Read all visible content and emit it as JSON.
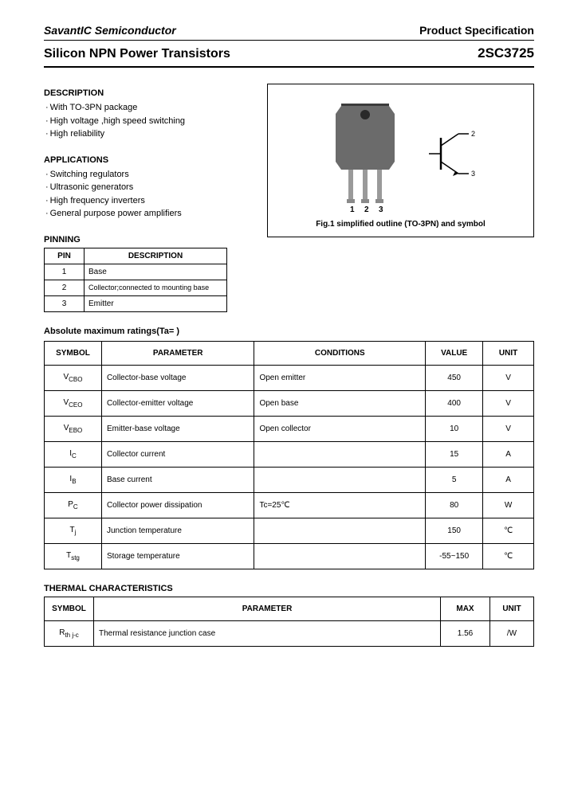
{
  "header": {
    "company": "SavantIC Semiconductor",
    "spec_label": "Product Specification",
    "product_title": "Silicon NPN Power Transistors",
    "part_number": "2SC3725"
  },
  "description": {
    "heading": "DESCRIPTION",
    "items": [
      "With TO-3PN package",
      "High voltage ,high speed switching",
      "High reliability"
    ]
  },
  "applications": {
    "heading": "APPLICATIONS",
    "items": [
      "Switching regulators",
      "Ultrasonic generators",
      "High frequency inverters",
      "General purpose power amplifiers"
    ]
  },
  "pinning": {
    "heading": "PINNING",
    "col_pin": "PIN",
    "col_desc": "DESCRIPTION",
    "rows": [
      {
        "pin": "1",
        "desc": "Base"
      },
      {
        "pin": "2",
        "desc": "Collector;connected to mounting base"
      },
      {
        "pin": "3",
        "desc": "Emitter"
      }
    ]
  },
  "figure": {
    "caption": "Fig.1 simplified outline (TO-3PN) and symbol",
    "pin_labels": [
      "1",
      "2",
      "3"
    ],
    "sym_labels": [
      "2",
      "3"
    ],
    "pkg_body": "#6b6b6b",
    "pkg_dark": "#3c3c3c",
    "lead_color": "#9a9a9a"
  },
  "abs_ratings": {
    "heading": "Absolute maximum ratings(Ta=  )",
    "columns": {
      "symbol": "SYMBOL",
      "parameter": "PARAMETER",
      "conditions": "CONDITIONS",
      "value": "VALUE",
      "unit": "UNIT"
    },
    "rows": [
      {
        "sym_b": "V",
        "sym_s": "CBO",
        "param": "Collector-base voltage",
        "cond": "Open emitter",
        "val": "450",
        "unit": "V"
      },
      {
        "sym_b": "V",
        "sym_s": "CEO",
        "param": "Collector-emitter voltage",
        "cond": "Open base",
        "val": "400",
        "unit": "V"
      },
      {
        "sym_b": "V",
        "sym_s": "EBO",
        "param": "Emitter-base voltage",
        "cond": "Open collector",
        "val": "10",
        "unit": "V"
      },
      {
        "sym_b": "I",
        "sym_s": "C",
        "param": "Collector current",
        "cond": "",
        "val": "15",
        "unit": "A"
      },
      {
        "sym_b": "I",
        "sym_s": "B",
        "param": "Base current",
        "cond": "",
        "val": "5",
        "unit": "A"
      },
      {
        "sym_b": "P",
        "sym_s": "C",
        "param": "Collector power dissipation",
        "cond": "Tc=25℃",
        "val": "80",
        "unit": "W"
      },
      {
        "sym_b": "T",
        "sym_s": "j",
        "param": "Junction temperature",
        "cond": "",
        "val": "150",
        "unit": "℃"
      },
      {
        "sym_b": "T",
        "sym_s": "stg",
        "param": "Storage temperature",
        "cond": "",
        "val": "-55~150",
        "unit": "℃"
      }
    ]
  },
  "thermal": {
    "heading": "THERMAL CHARACTERISTICS",
    "columns": {
      "symbol": "SYMBOL",
      "parameter": "PARAMETER",
      "max": "MAX",
      "unit": "UNIT"
    },
    "rows": [
      {
        "sym_b": "R",
        "sym_s": "th j-c",
        "param": "Thermal resistance junction case",
        "max": "1.56",
        "unit": "/W"
      }
    ]
  }
}
